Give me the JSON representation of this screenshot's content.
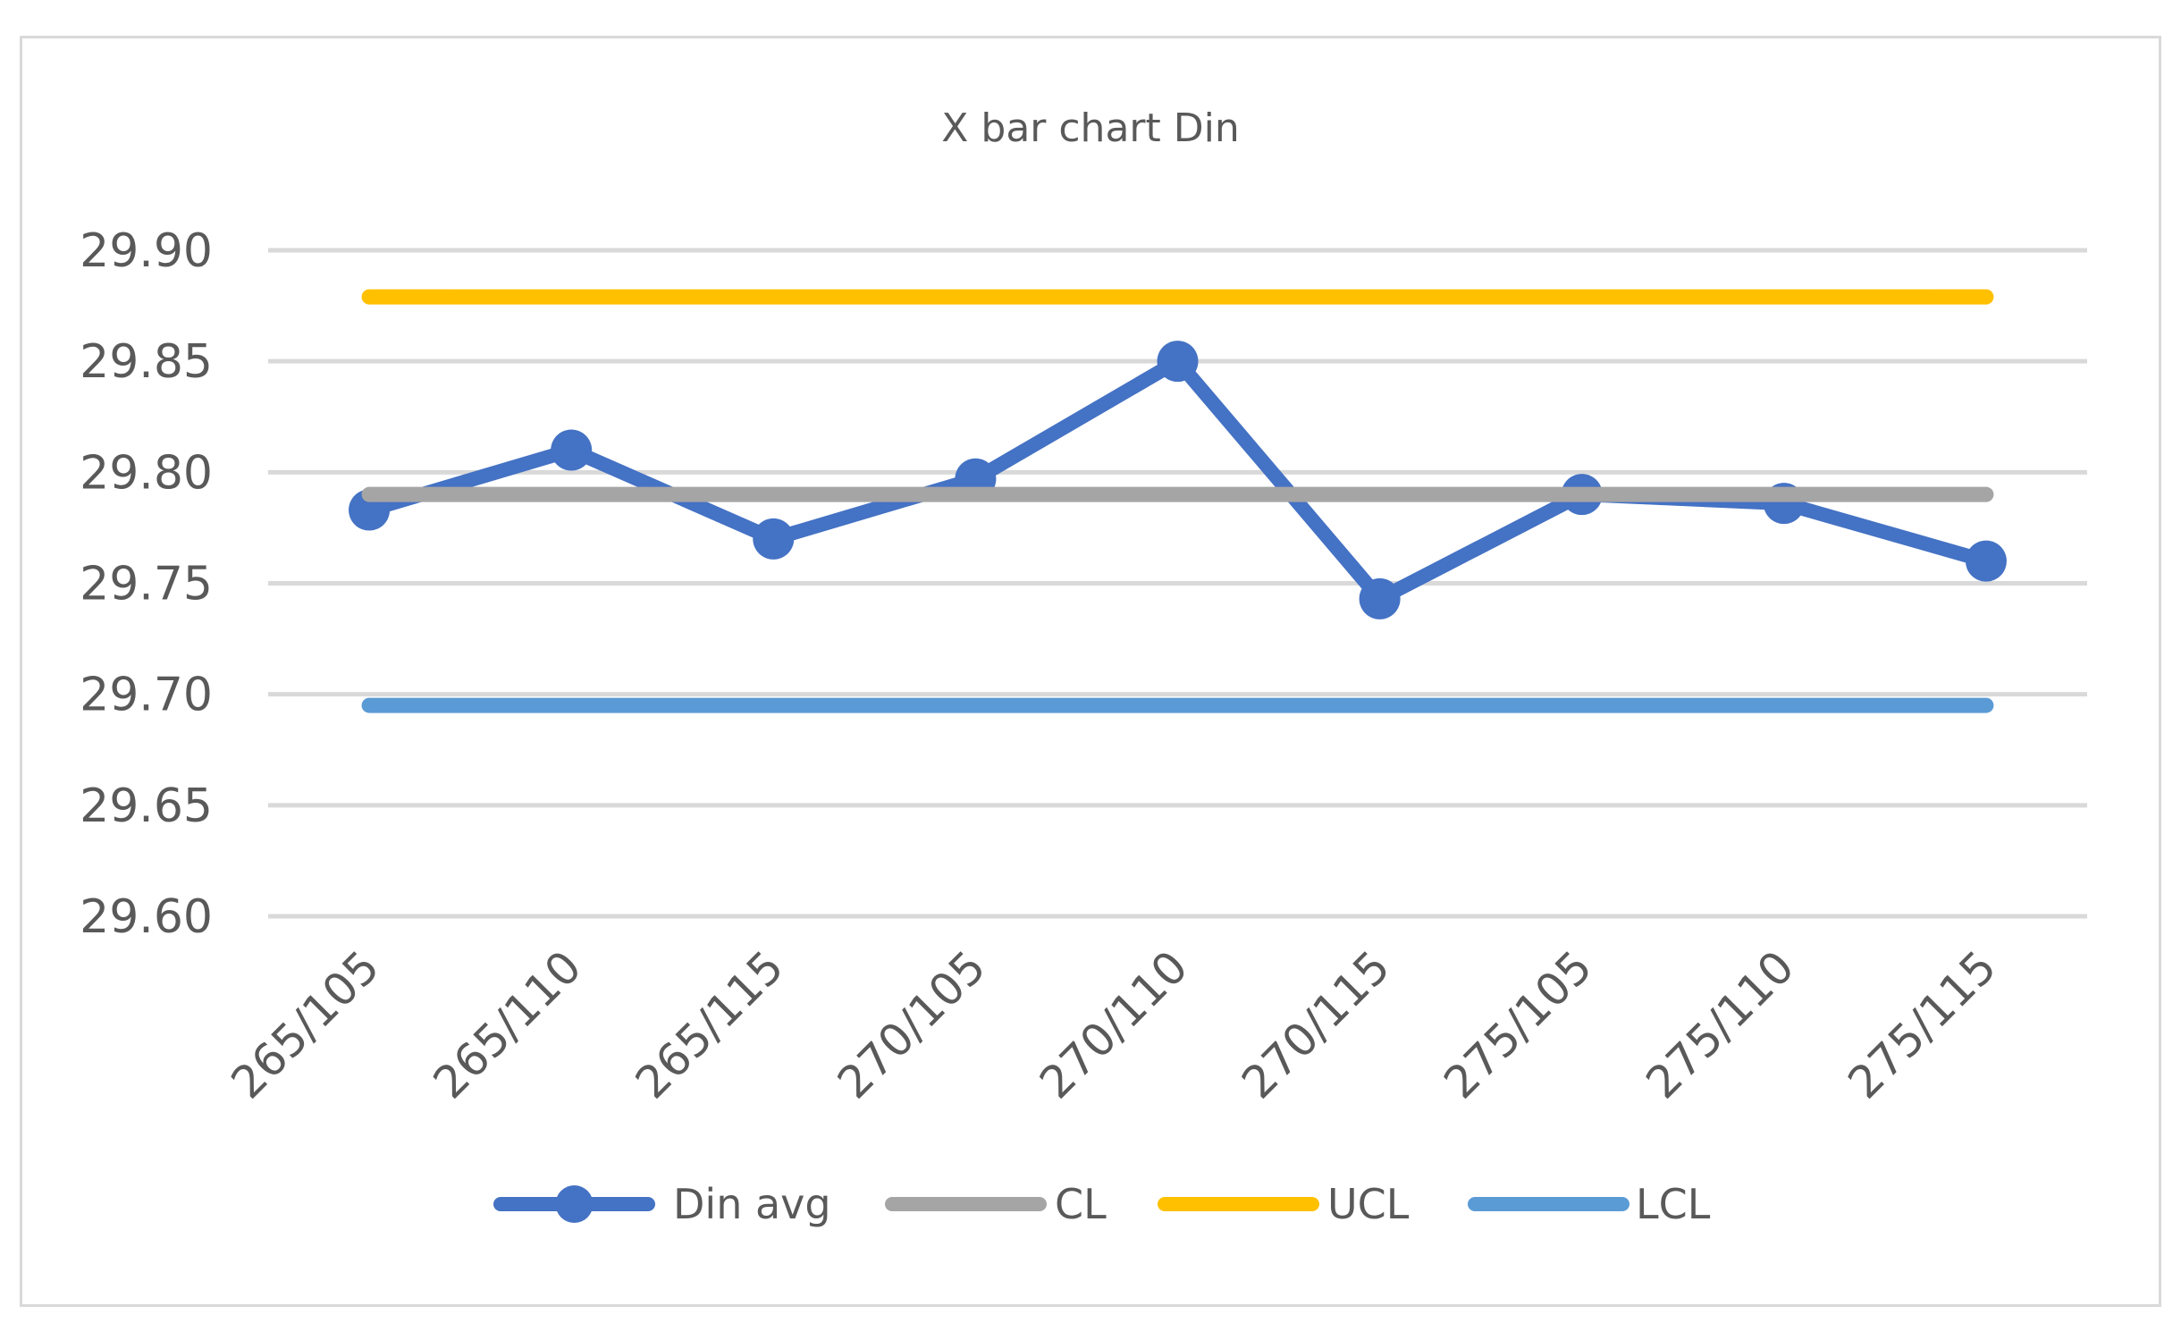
{
  "chart_data": {
    "type": "line",
    "title": "X bar chart Din",
    "xlabel": "",
    "ylabel": "",
    "categories": [
      "265/105",
      "265/110",
      "265/115",
      "270/105",
      "270/110",
      "270/115",
      "275/105",
      "275/110",
      "275/115"
    ],
    "ylim": [
      29.6,
      29.9
    ],
    "yticks": [
      "29.90",
      "29.85",
      "29.80",
      "29.75",
      "29.70",
      "29.65",
      "29.60"
    ],
    "grid": true,
    "legend_position": "bottom",
    "series": [
      {
        "name": "Din avg",
        "color": "#4472c4",
        "marker": true,
        "values": [
          29.783,
          29.81,
          29.77,
          29.797,
          29.85,
          29.743,
          29.79,
          29.786,
          29.76
        ]
      },
      {
        "name": "CL",
        "color": "#a5a5a5",
        "marker": false,
        "values": [
          29.79,
          29.79,
          29.79,
          29.79,
          29.79,
          29.79,
          29.79,
          29.79,
          29.79
        ]
      },
      {
        "name": "UCL",
        "color": "#ffc000",
        "marker": false,
        "values": [
          29.879,
          29.879,
          29.879,
          29.879,
          29.879,
          29.879,
          29.879,
          29.879,
          29.879
        ]
      },
      {
        "name": "LCL",
        "color": "#5b9bd5",
        "marker": false,
        "values": [
          29.695,
          29.695,
          29.695,
          29.695,
          29.695,
          29.695,
          29.695,
          29.695,
          29.695
        ]
      }
    ]
  }
}
